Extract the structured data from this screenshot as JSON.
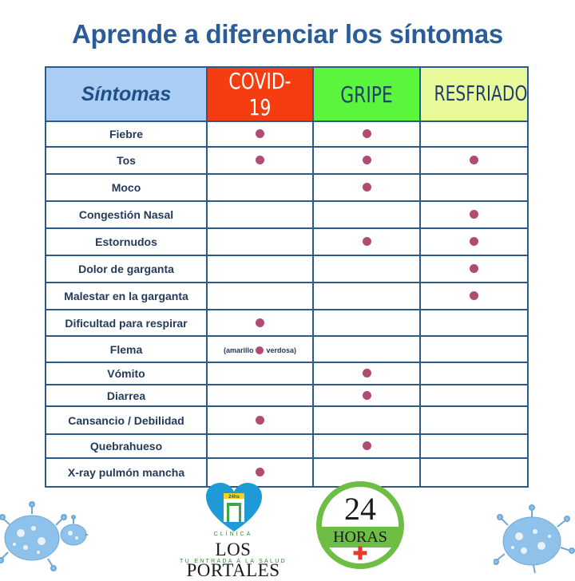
{
  "title": "Aprende a diferenciar los síntomas",
  "table": {
    "headers": [
      "Síntomas",
      "COVID-19",
      "GRIPE",
      "RESFRIADO"
    ],
    "header_colors": {
      "sintomas": "#a9cdf3",
      "covid": "#f63d12",
      "gripe": "#5cf53d",
      "resfriado": "#e9fa9a"
    },
    "dot_color": "#b04c72",
    "rows": [
      {
        "symptom": "Fiebre",
        "covid": true,
        "gripe": true,
        "resfriado": false
      },
      {
        "symptom": "Tos",
        "covid": true,
        "gripe": true,
        "resfriado": true
      },
      {
        "symptom": "Moco",
        "covid": false,
        "gripe": true,
        "resfriado": false
      },
      {
        "symptom": "Congestión Nasal",
        "covid": false,
        "gripe": false,
        "resfriado": true
      },
      {
        "symptom": "Estornudos",
        "covid": false,
        "gripe": true,
        "resfriado": true
      },
      {
        "symptom": "Dolor de garganta",
        "covid": false,
        "gripe": false,
        "resfriado": true
      },
      {
        "symptom": "Malestar en la garganta",
        "covid": false,
        "gripe": false,
        "resfriado": true
      },
      {
        "symptom": "Dificultad para respirar",
        "covid": true,
        "gripe": false,
        "resfriado": false
      },
      {
        "symptom": "Flema",
        "covid": true,
        "gripe": false,
        "resfriado": false,
        "covid_note_before": "(amarillo",
        "covid_note_after": "verdosa)"
      },
      {
        "symptom": "Vómito",
        "covid": false,
        "gripe": true,
        "resfriado": false
      },
      {
        "symptom": "Diarrea",
        "covid": false,
        "gripe": true,
        "resfriado": false
      },
      {
        "symptom": "Cansancio / Debilidad",
        "covid": true,
        "gripe": false,
        "resfriado": false
      },
      {
        "symptom": "Quebrahueso",
        "covid": false,
        "gripe": true,
        "resfriado": false
      },
      {
        "symptom": "X-ray pulmón mancha",
        "covid": true,
        "gripe": false,
        "resfriado": false
      }
    ]
  },
  "logo_portales": {
    "badge": "24hs",
    "top_text": "CLÍNICA",
    "name": "LOS PORTALES",
    "tagline": "TU ENTRADA A LA SALUD"
  },
  "logo_24": {
    "number": "24",
    "word": "HORAS"
  }
}
